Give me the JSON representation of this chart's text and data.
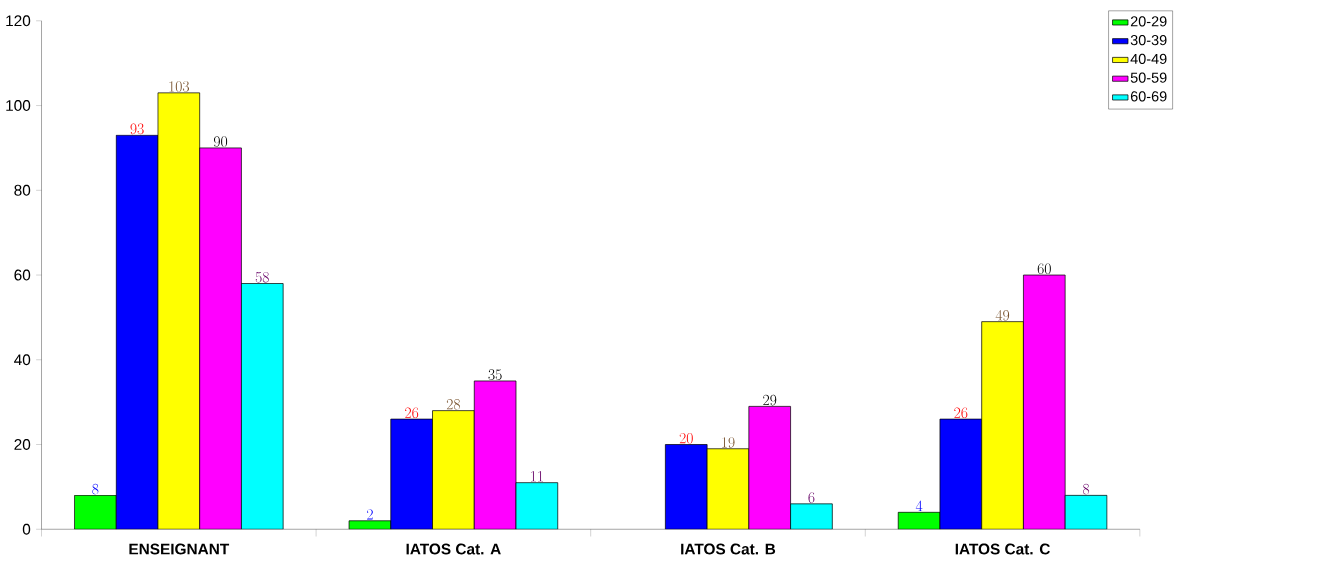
{
  "chart_data": {
    "type": "bar",
    "categories": [
      "ENSEIGNANT",
      "IATOS Cat. A",
      "IATOS Cat. B",
      "IATOS Cat. C"
    ],
    "series": [
      {
        "name": "20-29",
        "color": "#00ff00",
        "values": [
          8,
          2,
          null,
          4
        ]
      },
      {
        "name": "30-39",
        "color": "#0000ff",
        "values": [
          93,
          26,
          20,
          26
        ]
      },
      {
        "name": "40-49",
        "color": "#ffff00",
        "values": [
          103,
          28,
          19,
          49
        ]
      },
      {
        "name": "50-59",
        "color": "#ff00ff",
        "values": [
          90,
          35,
          29,
          60
        ]
      },
      {
        "name": "60-69",
        "color": "#00ffff",
        "values": [
          58,
          11,
          6,
          8
        ]
      }
    ],
    "ylim": [
      0,
      120
    ],
    "yticks": [
      0,
      20,
      40,
      60,
      80,
      100,
      120
    ],
    "data_labels": true,
    "grid": false,
    "legend": "top right"
  }
}
